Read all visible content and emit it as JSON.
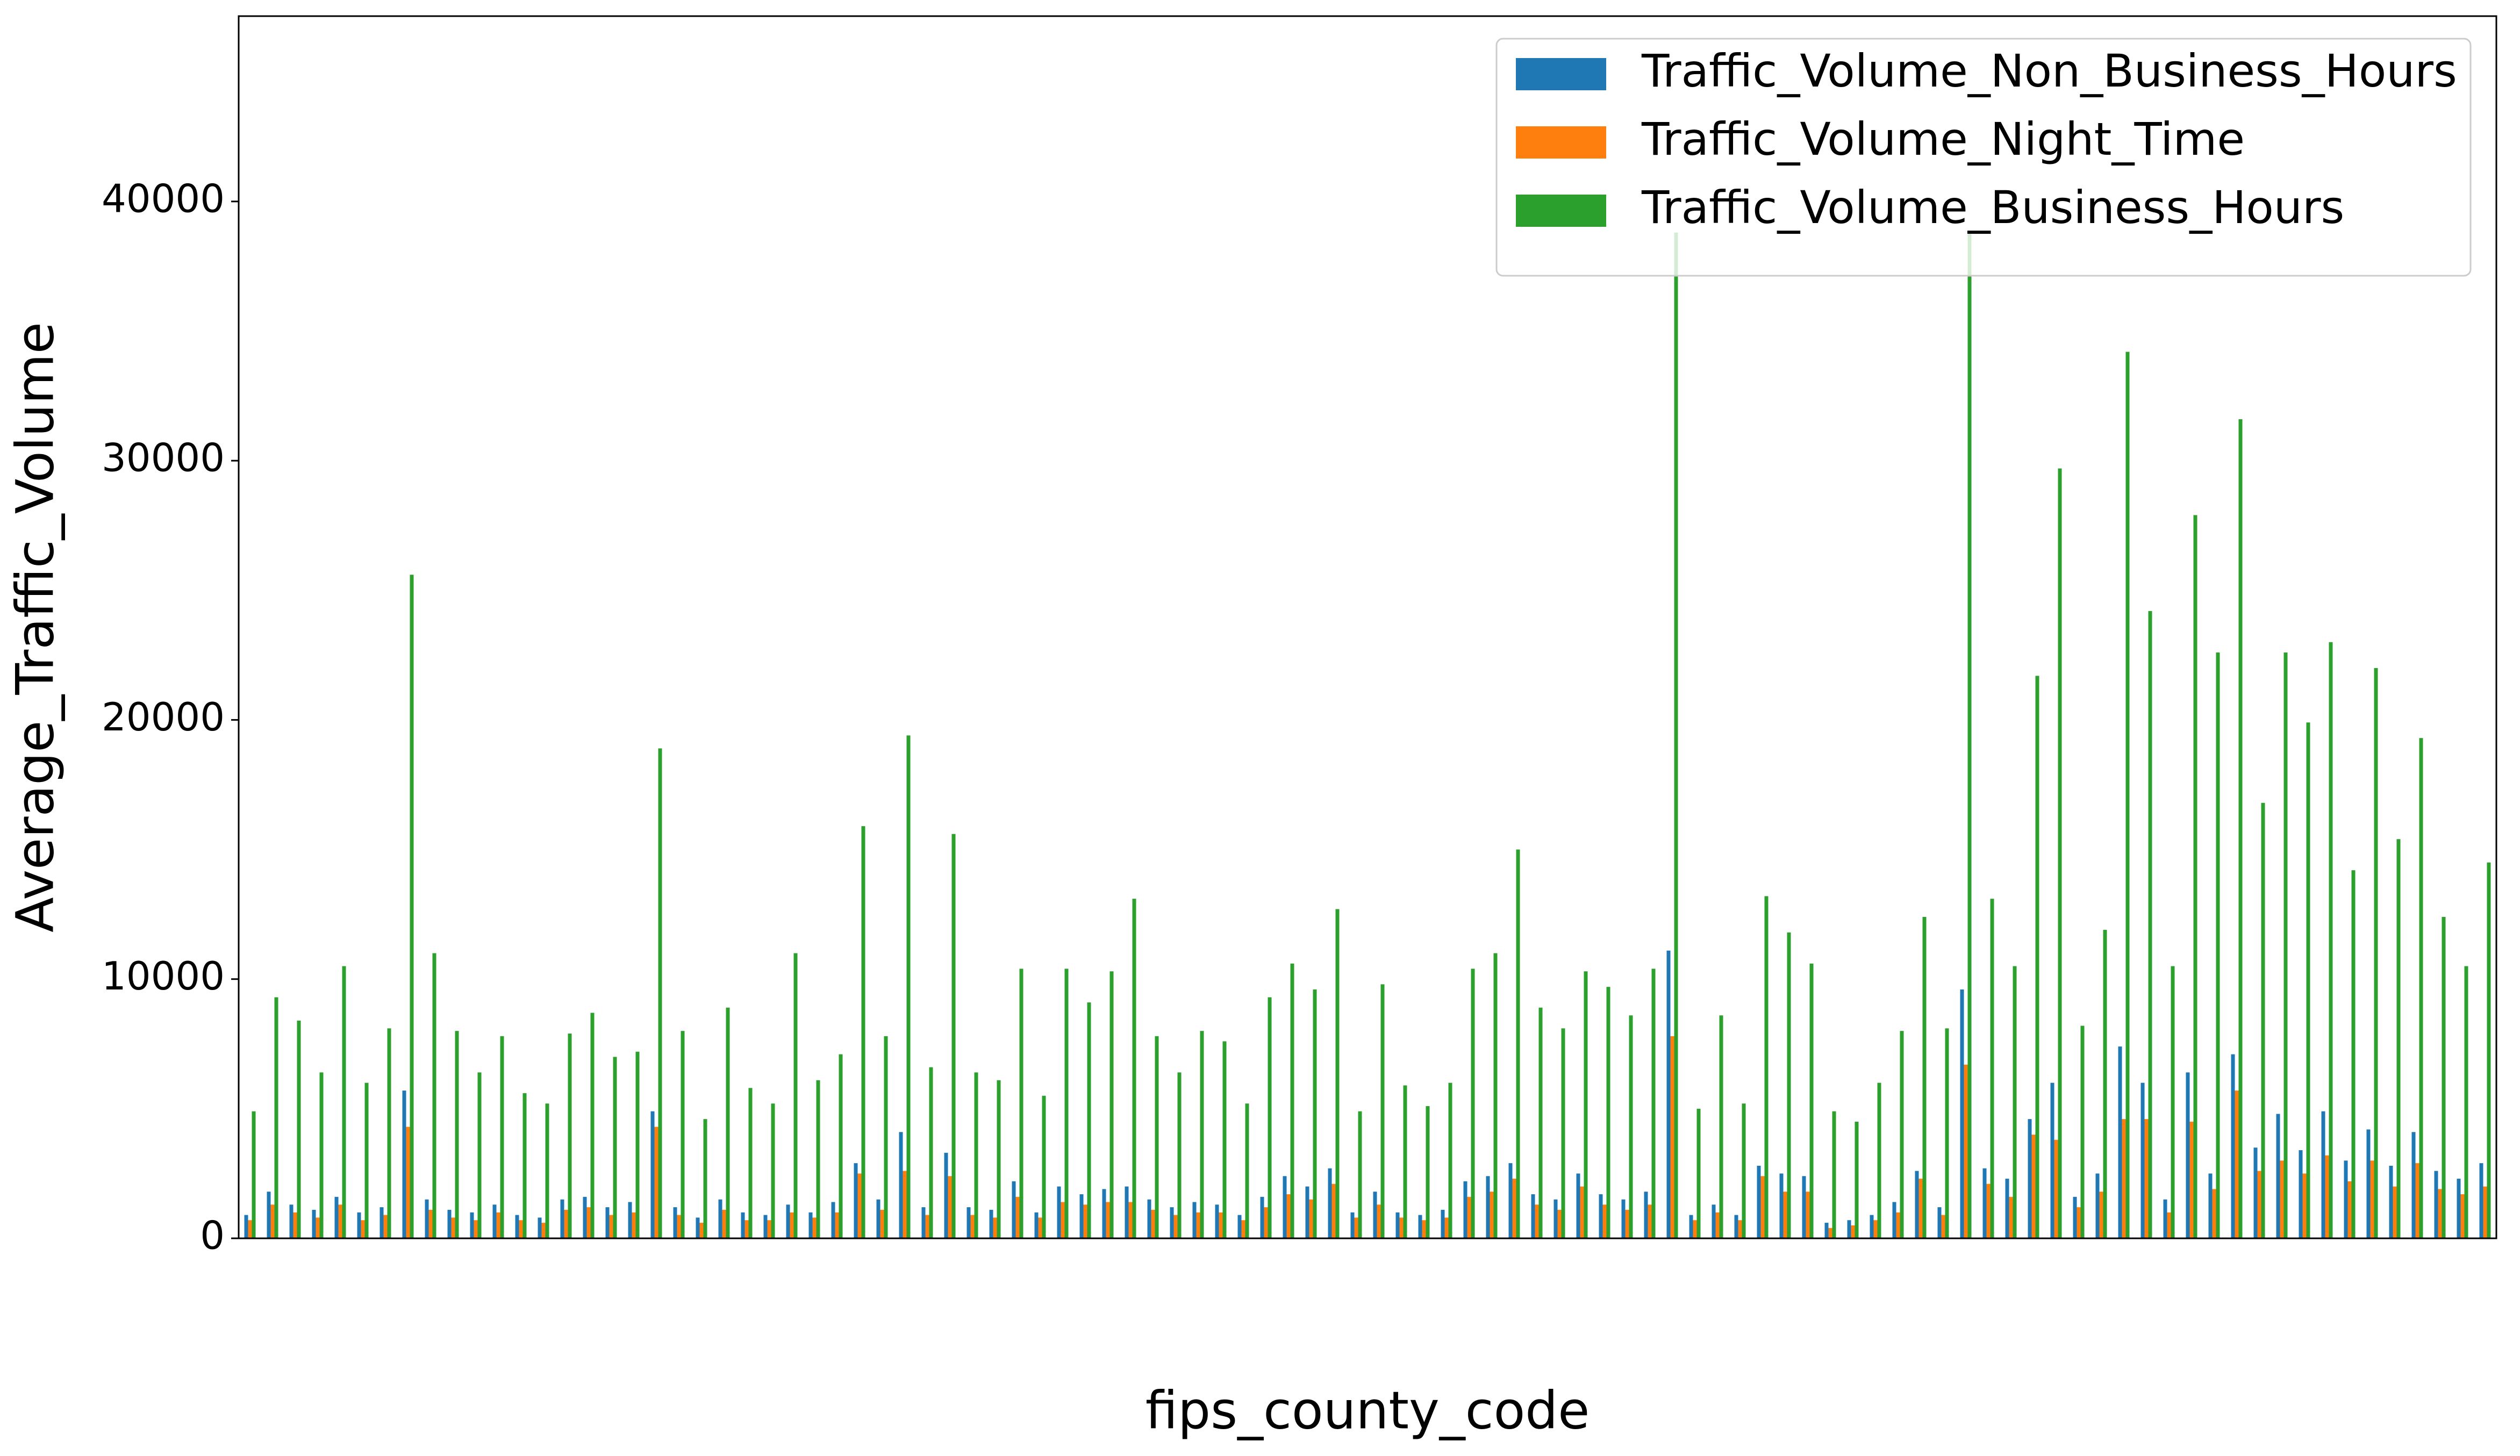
{
  "chart_data": {
    "type": "bar",
    "xlabel": "fips_county_code",
    "ylabel": "Average_Traffic_Volume",
    "categories": [
      null,
      null,
      null,
      null,
      null,
      null,
      null,
      null,
      null,
      null,
      null,
      null,
      null,
      null,
      null,
      null,
      null,
      null,
      null,
      null,
      null,
      null,
      null,
      null,
      null,
      null,
      null,
      null,
      null,
      null,
      null,
      null,
      null,
      null,
      null,
      null,
      null,
      null,
      null,
      null,
      null,
      null,
      null,
      null,
      null,
      null,
      null,
      null,
      null,
      null,
      null,
      null,
      null,
      null,
      null,
      null,
      null,
      null,
      null,
      null,
      null,
      null,
      null,
      null,
      null,
      null,
      null,
      null,
      null,
      null,
      null,
      null,
      null,
      null,
      null,
      null,
      null,
      null,
      null,
      null,
      null,
      null,
      null,
      null,
      null,
      null,
      null,
      null,
      null,
      null,
      null,
      null,
      null,
      null,
      null,
      null,
      null,
      null,
      null,
      null
    ],
    "series": [
      {
        "name": "Traffic_Volume_Non_Business_Hours",
        "color": "#1f77b4",
        "values": [
          900,
          1800,
          1300,
          1100,
          1600,
          1000,
          1200,
          5700,
          1500,
          1100,
          1000,
          1300,
          900,
          800,
          1500,
          1600,
          1200,
          1400,
          4900,
          1200,
          800,
          1500,
          1000,
          900,
          1300,
          1000,
          1400,
          2900,
          1500,
          4100,
          1200,
          3300,
          1200,
          1100,
          2200,
          1000,
          2000,
          1700,
          1900,
          2000,
          1500,
          1200,
          1400,
          1300,
          900,
          1600,
          2400,
          2000,
          2700,
          1000,
          1800,
          1000,
          900,
          1100,
          2200,
          2400,
          2900,
          1700,
          1500,
          2500,
          1700,
          1500,
          1800,
          11100,
          900,
          1300,
          900,
          2800,
          2500,
          2400,
          600,
          700,
          900,
          1400,
          2600,
          1200,
          9600,
          2700,
          2300,
          4600,
          6000,
          1600,
          2500,
          7400,
          6000,
          1500,
          6400,
          2500,
          7100,
          3500,
          4800,
          3400,
          4900,
          3000,
          4200,
          2800,
          4100,
          2600,
          2300,
          2900
        ]
      },
      {
        "name": "Traffic_Volume_Night_Time",
        "color": "#ff7f0e",
        "values": [
          700,
          1300,
          1000,
          800,
          1300,
          700,
          900,
          4300,
          1100,
          800,
          700,
          1000,
          700,
          600,
          1100,
          1200,
          900,
          1000,
          4300,
          900,
          600,
          1100,
          700,
          700,
          1000,
          800,
          1000,
          2500,
          1100,
          2600,
          900,
          2400,
          900,
          800,
          1600,
          800,
          1400,
          1300,
          1400,
          1400,
          1100,
          900,
          1000,
          1000,
          700,
          1200,
          1700,
          1500,
          2100,
          800,
          1300,
          800,
          700,
          800,
          1600,
          1800,
          2300,
          1300,
          1100,
          2000,
          1300,
          1100,
          1300,
          7800,
          700,
          1000,
          700,
          2400,
          1800,
          1800,
          400,
          500,
          700,
          1000,
          2300,
          900,
          6700,
          2100,
          1600,
          4000,
          3800,
          1200,
          1800,
          4600,
          4600,
          1000,
          4500,
          1900,
          5700,
          2600,
          3000,
          2500,
          3200,
          2200,
          3000,
          2000,
          2900,
          1900,
          1700,
          2000
        ]
      },
      {
        "name": "Traffic_Volume_Business_Hours",
        "color": "#2ca02c",
        "values": [
          4900,
          9300,
          8400,
          6400,
          10500,
          6000,
          8100,
          25600,
          11000,
          8000,
          6400,
          7800,
          5600,
          5200,
          7900,
          8700,
          7000,
          7200,
          18900,
          8000,
          4600,
          8900,
          5800,
          5200,
          11000,
          6100,
          7100,
          15900,
          7800,
          19400,
          6600,
          15600,
          6400,
          6100,
          10400,
          5500,
          10400,
          9100,
          10300,
          13100,
          7800,
          6400,
          8000,
          7600,
          5200,
          9300,
          10600,
          9600,
          12700,
          4900,
          9800,
          5900,
          5100,
          6000,
          10400,
          11000,
          15000,
          8900,
          8100,
          10300,
          9700,
          8600,
          10400,
          38800,
          5000,
          8600,
          5200,
          13200,
          11800,
          10600,
          4900,
          4500,
          6000,
          8000,
          12400,
          8100,
          38800,
          13100,
          10500,
          21700,
          29700,
          8200,
          11900,
          34200,
          24200,
          10500,
          27900,
          22600,
          31600,
          16800,
          22600,
          19900,
          23000,
          14200,
          22000,
          15400,
          19300,
          12400,
          10500,
          14500
        ]
      }
    ],
    "ylim": [
      0,
      47150
    ],
    "yticks": [
      0,
      10000,
      20000,
      30000,
      40000
    ],
    "legend": "upper right"
  }
}
